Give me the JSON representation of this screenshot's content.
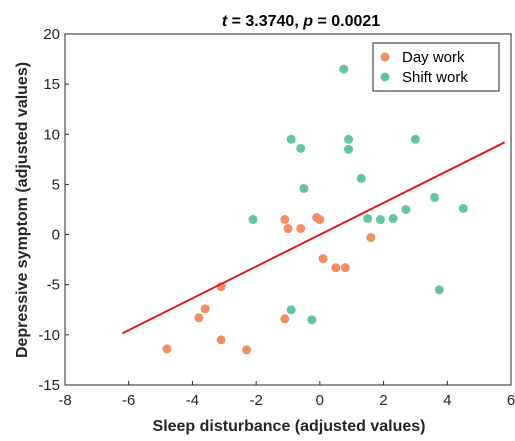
{
  "chart_data": {
    "type": "scatter",
    "title": {
      "t_symbol": "t",
      "t_sep": " = ",
      "t_value": "3.3740",
      "mid": ", ",
      "p_symbol": "p",
      "p_sep": " = ",
      "p_value": "0.0021"
    },
    "xlabel": "Sleep disturbance (adjusted values)",
    "ylabel": "Depressive symptom (adjusted values)",
    "xlim": [
      -8,
      6
    ],
    "ylim": [
      -15,
      20
    ],
    "xticks": [
      "-8",
      "-6",
      "-4",
      "-2",
      "0",
      "2",
      "4",
      "6"
    ],
    "yticks": [
      "-15",
      "-10",
      "-5",
      "0",
      "5",
      "10",
      "15",
      "20"
    ],
    "grid": false,
    "legend_position": "top-right",
    "series": [
      {
        "name": "Day work",
        "color": "#F28E67",
        "points": [
          [
            -4.8,
            -11.4
          ],
          [
            -3.8,
            -8.3
          ],
          [
            -3.6,
            -7.4
          ],
          [
            -3.1,
            -10.5
          ],
          [
            -3.1,
            -5.2
          ],
          [
            -2.3,
            -11.5
          ],
          [
            -1.1,
            -8.4
          ],
          [
            -1.1,
            1.5
          ],
          [
            -1.0,
            0.6
          ],
          [
            -0.6,
            0.6
          ],
          [
            -0.1,
            1.7
          ],
          [
            0.0,
            1.5
          ],
          [
            0.1,
            -2.4
          ],
          [
            0.5,
            -3.3
          ],
          [
            0.8,
            -3.3
          ],
          [
            1.6,
            -0.3
          ]
        ]
      },
      {
        "name": "Shift work",
        "color": "#66C2A5",
        "points": [
          [
            -2.1,
            1.5
          ],
          [
            -0.9,
            9.5
          ],
          [
            -0.9,
            -7.5
          ],
          [
            -0.6,
            8.6
          ],
          [
            -0.5,
            4.6
          ],
          [
            -0.25,
            -8.5
          ],
          [
            0.75,
            16.5
          ],
          [
            0.9,
            9.5
          ],
          [
            0.9,
            8.5
          ],
          [
            1.3,
            5.6
          ],
          [
            1.5,
            1.6
          ],
          [
            1.9,
            1.5
          ],
          [
            2.3,
            1.6
          ],
          [
            2.7,
            2.5
          ],
          [
            3.0,
            9.5
          ],
          [
            3.6,
            3.7
          ],
          [
            3.75,
            -5.5
          ],
          [
            4.5,
            2.6
          ]
        ]
      }
    ],
    "fit_line": {
      "color": "#E8191C",
      "x": [
        -6.2,
        5.8
      ],
      "y": [
        -9.85,
        9.2
      ]
    }
  }
}
